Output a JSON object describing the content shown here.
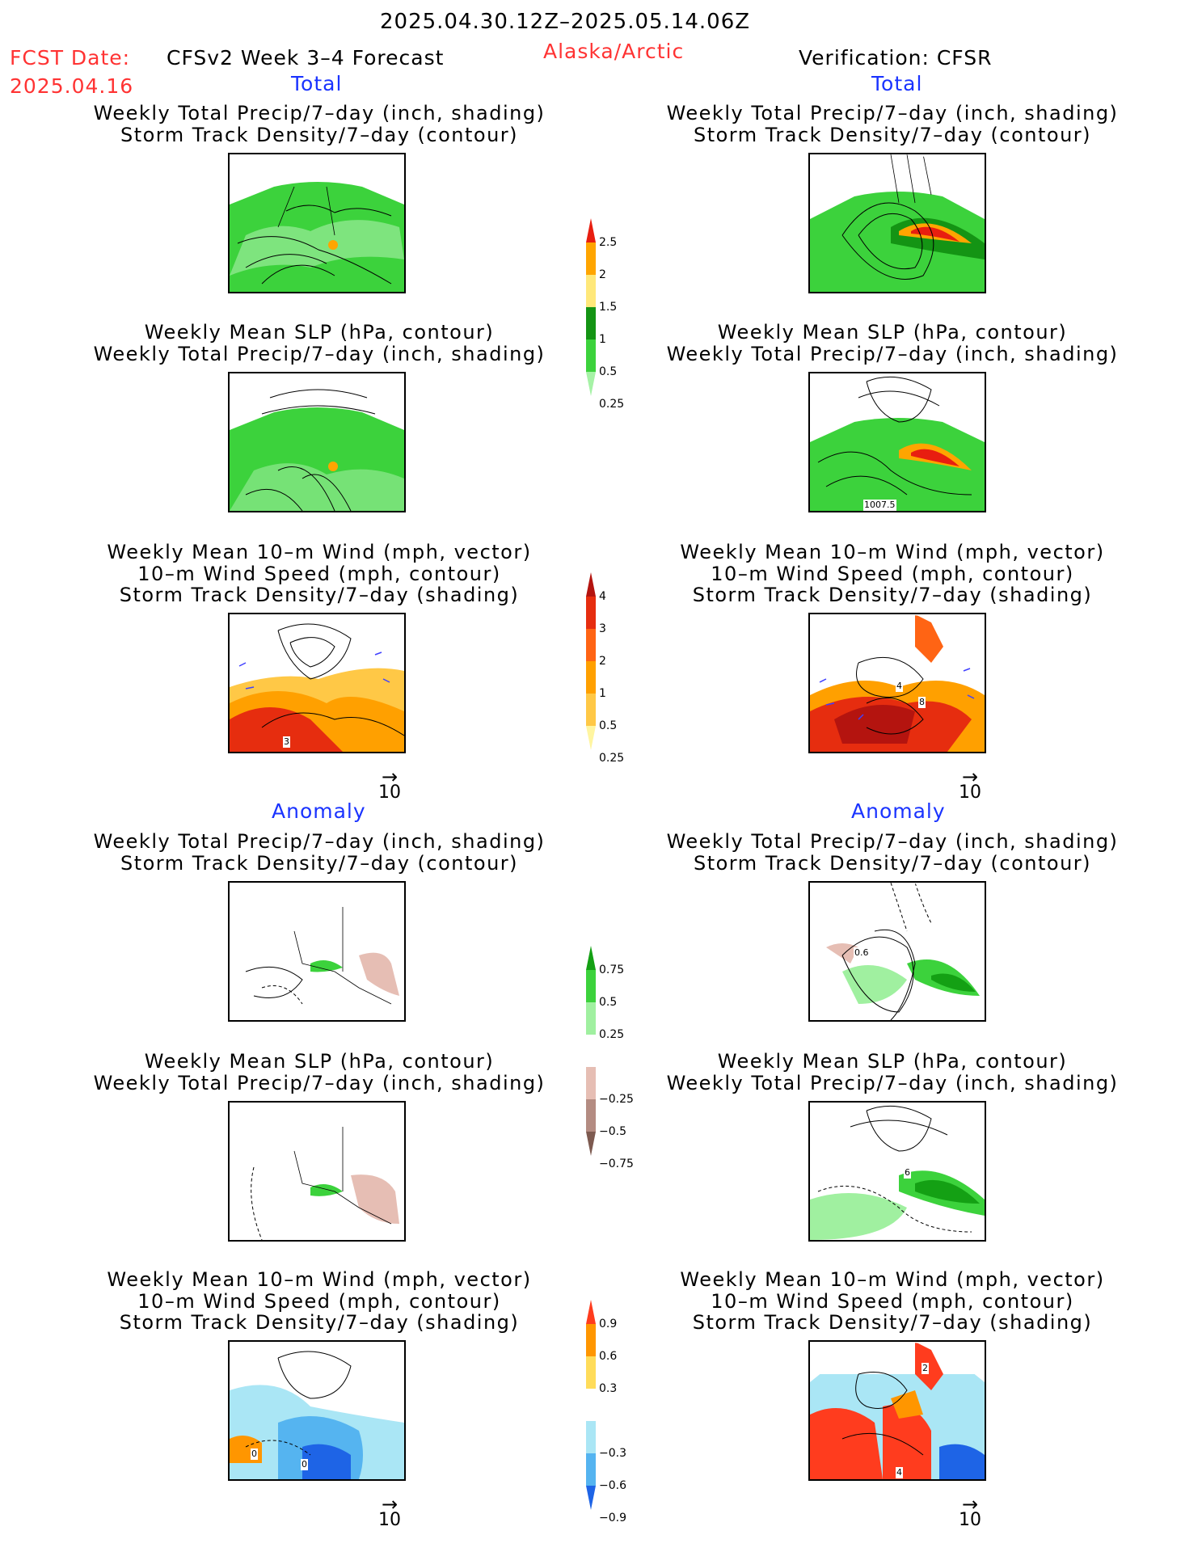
{
  "header": {
    "date_range": "2025.04.30.12Z–2025.05.14.06Z",
    "fcst_label": "FCST Date:",
    "fcst_date": "2025.04.16",
    "model": "CFSv2 Week 3–4 Forecast",
    "region": "Alaska/Arctic",
    "verification": "Verification: CFSR"
  },
  "sections": {
    "total_left": "Total",
    "total_right": "Total",
    "anomaly_left": "Anomaly",
    "anomaly_right": "Anomaly"
  },
  "panel_titles": {
    "precip_storm": [
      "Weekly Total Precip/7–day (inch, shading)",
      "Storm Track Density/7–day (contour)"
    ],
    "slp_precip": [
      "Weekly Mean SLP (hPa, contour)",
      "Weekly Total Precip/7–day (inch, shading)"
    ],
    "wind_storm": [
      "Weekly Mean 10–m Wind (mph, vector)",
      "10–m Wind Speed (mph, contour)",
      "Storm Track Density/7–day (shading)"
    ]
  },
  "map_labels": {
    "slp_total_right": "1007.5",
    "wind_total_left": "3",
    "wind_total_right_a": "4",
    "wind_total_right_b": "8",
    "precip_anom_right": "0.6",
    "slp_anom_right": "6",
    "wind_anom_left_a": "0",
    "wind_anom_left_b": "0",
    "wind_anom_right_a": "2",
    "wind_anom_right_b": "4"
  },
  "reference_vector": {
    "label": "10"
  },
  "colorbars": {
    "precip_total": {
      "labels": [
        "2.5",
        "2",
        "1.5",
        "1",
        "0.5",
        "0.25"
      ],
      "colors": [
        "#e81e10",
        "#ffa500",
        "#ffe87a",
        "#149414",
        "#3cd23c",
        "#a6f2a6"
      ]
    },
    "storm_total": {
      "labels": [
        "4",
        "3",
        "2",
        "1",
        "0.5",
        "0.25"
      ],
      "colors": [
        "#b4140f",
        "#e62d0f",
        "#ff6414",
        "#ffa000",
        "#ffc846",
        "#fff5a0"
      ]
    },
    "precip_anomaly": {
      "labels": [
        "0.75",
        "0.5",
        "0.25",
        "−0.25",
        "−0.5",
        "−0.75"
      ],
      "colors": [
        "#14a014",
        "#3cd23c",
        "#a0f0a0",
        "#ffffff",
        "#e6beb4",
        "#b48c82",
        "#7d5a50"
      ]
    },
    "storm_anomaly": {
      "labels": [
        "0.9",
        "0.6",
        "0.3",
        "−0.3",
        "−0.6",
        "−0.9"
      ],
      "colors": [
        "#ff3c1e",
        "#ff9600",
        "#ffdc5a",
        "#ffffff",
        "#aae6f5",
        "#55b4f0",
        "#1e64e6"
      ]
    }
  }
}
